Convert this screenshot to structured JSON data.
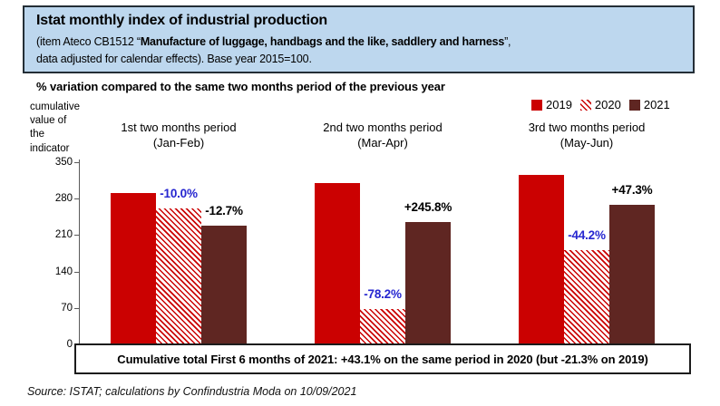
{
  "header": {
    "title": "Istat monthly index of industrial production",
    "subtitle_prefix": "(item Ateco CB1512 “",
    "subtitle_bold": "Manufacture of luggage, handbags and the like, saddlery and harness",
    "subtitle_suffix": "”,",
    "subtitle_line2": "data adjusted for calendar effects). Base year 2015=100."
  },
  "chart": {
    "title": "% variation compared to the same two months period of the previous year",
    "y_axis_label": "cumulative\nvalue of\nthe\nindicator"
  },
  "legend": [
    {
      "label": "2019",
      "swatch": "solid-red"
    },
    {
      "label": "2020",
      "swatch": "hatched-red"
    },
    {
      "label": "2021",
      "swatch": "solid-maroon"
    }
  ],
  "chart_data": {
    "type": "bar",
    "title": "% variation compared to the same two months period of the previous year",
    "ylabel": "cumulative value of the indicator",
    "ylim": [
      0,
      350
    ],
    "yticks": [
      0,
      70,
      140,
      210,
      280,
      350
    ],
    "grid": false,
    "legend_position": "top-right",
    "categories": [
      "1st two months period\n(Jan-Feb)",
      "2nd two months period\n(Mar-Apr)",
      "3rd two months period\n(May-Jun)"
    ],
    "series": [
      {
        "name": "2019",
        "color": "#CB0101",
        "values": [
          291,
          310,
          326
        ],
        "labels": [
          null,
          null,
          null
        ],
        "label_color": "#000000"
      },
      {
        "name": "2020",
        "color": "hatched",
        "values": [
          262,
          68,
          182
        ],
        "labels": [
          "-10.0%",
          "-78.2%",
          "-44.2%"
        ],
        "label_color": "#2626D0"
      },
      {
        "name": "2021",
        "color": "#5F2622",
        "values": [
          228,
          235,
          268
        ],
        "labels": [
          "-12.7%",
          "+245.8%",
          "+47.3%"
        ],
        "label_color": "#000000"
      }
    ]
  },
  "footer_box": "Cumulative total First 6 months of 2021: +43.1% on the same period in 2020 (but -21.3% on 2019)",
  "source": "Source: ISTAT; calculations by Confindustria Moda on 10/09/2021",
  "colors": {
    "red_2019": "#CB0101",
    "maroon_2021": "#5F2622",
    "blue_data_label": "#2626D0",
    "header_bg": "#BDD7EE",
    "header_border": "#242E36"
  }
}
